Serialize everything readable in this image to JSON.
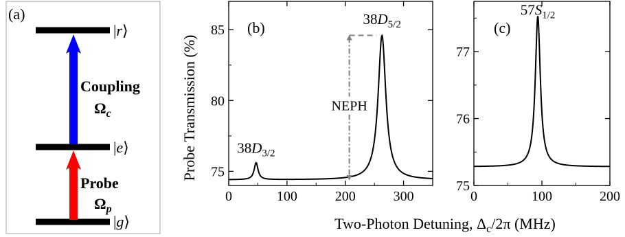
{
  "figure": {
    "panel_a": {
      "label": "(a)",
      "levels": [
        {
          "ket_left": "|",
          "ket_sym": "r",
          "ket_right": "⟩"
        },
        {
          "ket_left": "|",
          "ket_sym": "e",
          "ket_right": "⟩"
        },
        {
          "ket_left": "|",
          "ket_sym": "g",
          "ket_right": "⟩"
        }
      ],
      "coupling": {
        "label": "Coupling",
        "omega": "Ω",
        "sub": "c",
        "color": "#0000ff"
      },
      "probe": {
        "label": "Probe",
        "omega": "Ω",
        "sub": "p",
        "color": "#ff0000"
      }
    },
    "ylabel": "Probe Transmission (%)",
    "xlabel_main": "Two-Photon Detuning, Δ",
    "xlabel_sub": "c",
    "xlabel_rest": "/2π (MHz)"
  },
  "chart_data": [
    {
      "type": "line",
      "panel_label": "(b)",
      "xlim": [
        0,
        350
      ],
      "ylim": [
        74,
        87
      ],
      "xticks": [
        0,
        100,
        200,
        300
      ],
      "yticks": [
        75,
        80,
        85
      ],
      "baseline": 74.4,
      "peaks": [
        {
          "center": 47,
          "amplitude": 1.2,
          "width": 4
        },
        {
          "center": 263,
          "amplitude": 10.2,
          "width": 8
        }
      ],
      "annotations": [
        {
          "main": "38",
          "italic": "D",
          "sub": "3/2",
          "x": 47,
          "y": 76.3
        },
        {
          "main": "38",
          "italic": "D",
          "sub": "5/2",
          "x": 263,
          "y": 85.4
        }
      ],
      "neph": {
        "label": "NEPH",
        "x": 207,
        "y_top": 84.6,
        "y_bottom": 74.4
      }
    },
    {
      "type": "line",
      "panel_label": "(c)",
      "xlim": [
        0,
        200
      ],
      "ylim": [
        75,
        77.75
      ],
      "xticks": [
        0,
        100,
        200
      ],
      "yticks": [
        75,
        76,
        77
      ],
      "baseline": 75.28,
      "peaks": [
        {
          "center": 94,
          "amplitude": 2.25,
          "width": 4.5
        }
      ],
      "annotations": [
        {
          "main": "57",
          "italic": "S",
          "sub": "1/2",
          "x": 94,
          "y": 77.55
        }
      ]
    }
  ]
}
